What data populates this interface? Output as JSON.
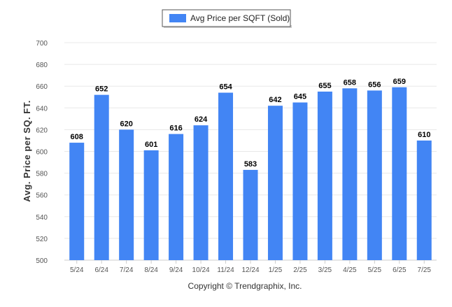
{
  "chart_data": {
    "type": "bar",
    "categories": [
      "5/24",
      "6/24",
      "7/24",
      "8/24",
      "9/24",
      "10/24",
      "11/24",
      "12/24",
      "1/25",
      "2/25",
      "3/25",
      "4/25",
      "5/25",
      "6/25",
      "7/25"
    ],
    "series": [
      {
        "name": "Avg Price per SQFT (Sold)",
        "values": [
          608,
          652,
          620,
          601,
          616,
          624,
          654,
          583,
          642,
          645,
          655,
          658,
          656,
          659,
          610
        ]
      }
    ],
    "ylabel": "Avg. Price per SQ. FT.",
    "xlabel": "",
    "ylim": [
      500,
      700
    ],
    "yticks": [
      500,
      520,
      540,
      560,
      580,
      600,
      620,
      640,
      660,
      680,
      700
    ],
    "grid": true,
    "legend_position": "top-center",
    "bar_color": "#4285f4",
    "data_labels": true
  },
  "footer": {
    "copyright": "Copyright © Trendgraphix, Inc."
  }
}
